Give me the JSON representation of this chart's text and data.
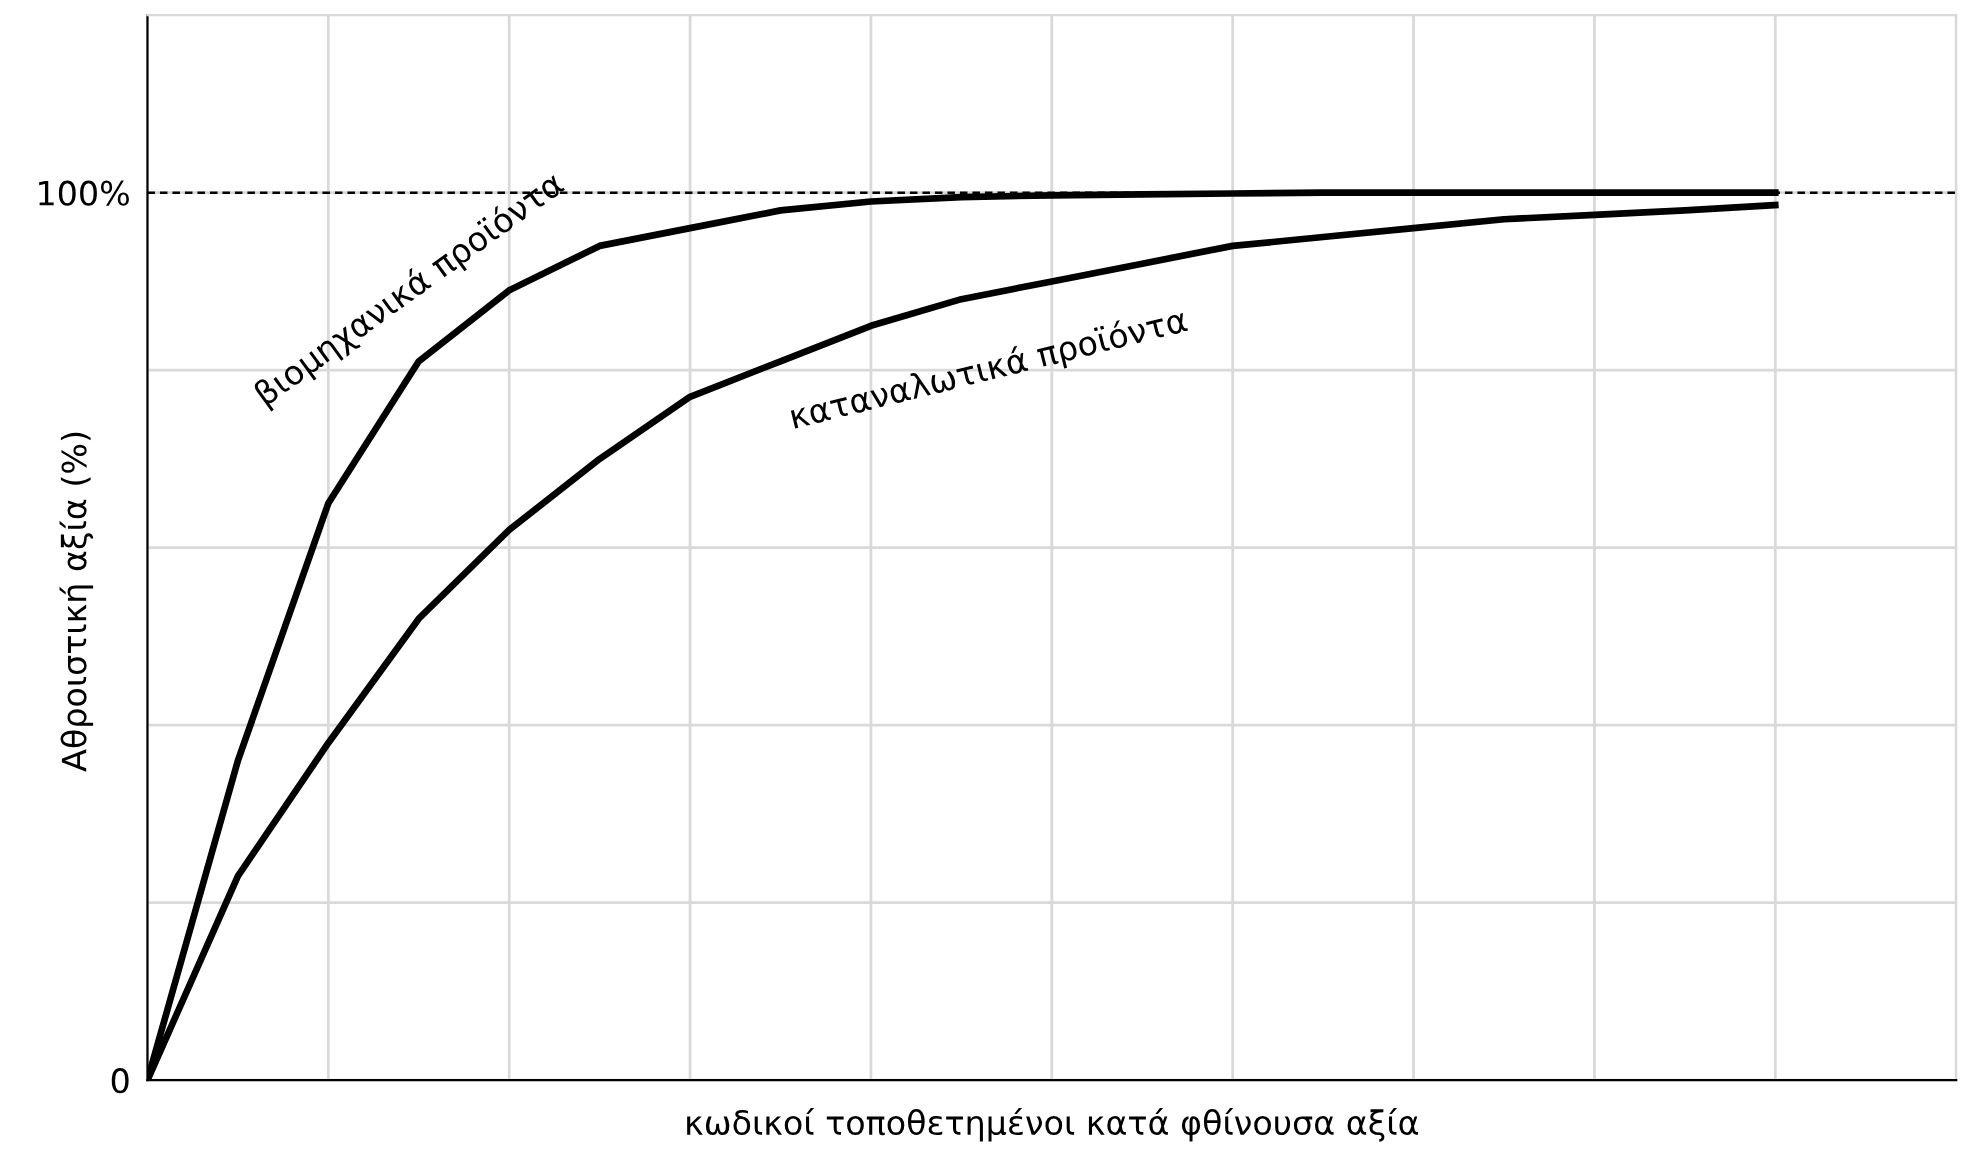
{
  "chart_data": {
    "type": "line",
    "ylabel": "Αθροιστική αξία (%)",
    "xlabel": "κωδικοί τοποθετημένοι κατά φθίνουσα αξία",
    "categories": [
      null,
      null,
      null,
      null,
      null,
      null,
      null,
      null,
      null,
      null,
      null,
      null,
      null,
      null,
      null,
      null,
      null,
      null,
      null
    ],
    "series": [
      {
        "name": "βιομηχανικά προϊόντα",
        "color": "#000000",
        "values": [
          0,
          36,
          65,
          81,
          89,
          94,
          96,
          98,
          99,
          99.5,
          99.7,
          99.8,
          99.9,
          100,
          100,
          100,
          100,
          100,
          100
        ]
      },
      {
        "name": "καταναλωτικά προϊόντα",
        "color": "#000000",
        "values": [
          0,
          23,
          38,
          52,
          62,
          70,
          77,
          81,
          85,
          88,
          90,
          92,
          94,
          95,
          96,
          97,
          97.5,
          98,
          98.6
        ]
      }
    ],
    "ylim": [
      0,
      120
    ],
    "yticks": [
      {
        "value": 0,
        "label": "0"
      },
      {
        "value": 20,
        "label": null
      },
      {
        "value": 40,
        "label": null
      },
      {
        "value": 60,
        "label": null
      },
      {
        "value": 80,
        "label": null
      },
      {
        "value": 100,
        "label": "100%"
      }
    ],
    "ref_lines": [
      {
        "axis": "y",
        "value": 100,
        "label": null,
        "color": "#000000",
        "line_style": "dashed"
      }
    ],
    "grid": true,
    "legend": false,
    "marker": "none",
    "line_style": "solid"
  }
}
